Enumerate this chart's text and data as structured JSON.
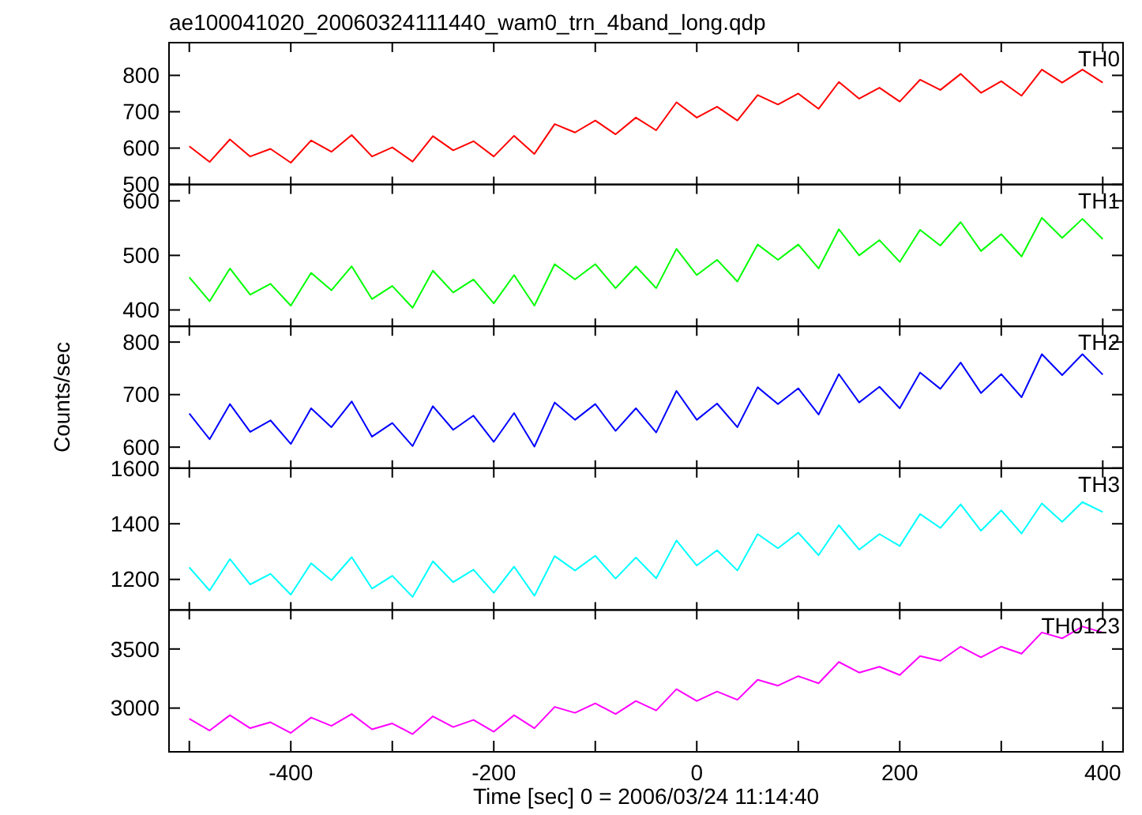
{
  "chart_data": [
    {
      "type": "line",
      "title": "ae100041020_20060324111440_wam0_trn_4band_long.qdp",
      "x": [
        -500,
        -480,
        -460,
        -440,
        -420,
        -400,
        -380,
        -360,
        -340,
        -320,
        -300,
        -280,
        -260,
        -240,
        -220,
        -200,
        -180,
        -160,
        -140,
        -120,
        -100,
        -80,
        -60,
        -40,
        -20,
        0,
        20,
        40,
        60,
        80,
        100,
        120,
        140,
        160,
        180,
        200,
        220,
        240,
        260,
        280,
        300,
        320,
        340,
        360,
        380,
        400
      ],
      "xlim": [
        -520,
        420
      ],
      "xticks": [
        {
          "value": -500,
          "label": null
        },
        {
          "value": -400,
          "label": null
        },
        {
          "value": -300,
          "label": null
        },
        {
          "value": -200,
          "label": null
        },
        {
          "value": -100,
          "label": null
        },
        {
          "value": 0,
          "label": null
        },
        {
          "value": 100,
          "label": null
        },
        {
          "value": 200,
          "label": null
        },
        {
          "value": 300,
          "label": null
        },
        {
          "value": 400,
          "label": null
        }
      ],
      "ylim": [
        500,
        890
      ],
      "yticks": [
        500,
        600,
        700,
        800
      ],
      "tick_labels": "y",
      "legend": "top right",
      "series": [
        {
          "name": "TH0",
          "color": "#ff0000",
          "values": [
            605,
            562,
            624,
            577,
            598,
            560,
            621,
            590,
            636,
            577,
            602,
            563,
            633,
            594,
            619,
            577,
            634,
            584,
            666,
            643,
            676,
            638,
            684,
            649,
            726,
            684,
            714,
            676,
            746,
            720,
            750,
            708,
            782,
            736,
            766,
            728,
            788,
            760,
            804,
            752,
            784,
            744,
            816,
            780,
            816,
            780
          ]
        }
      ]
    },
    {
      "type": "line",
      "x": [
        -500,
        -480,
        -460,
        -440,
        -420,
        -400,
        -380,
        -360,
        -340,
        -320,
        -300,
        -280,
        -260,
        -240,
        -220,
        -200,
        -180,
        -160,
        -140,
        -120,
        -100,
        -80,
        -60,
        -40,
        -20,
        0,
        20,
        40,
        60,
        80,
        100,
        120,
        140,
        160,
        180,
        200,
        220,
        240,
        260,
        280,
        300,
        320,
        340,
        360,
        380,
        400
      ],
      "xlim": [
        -520,
        420
      ],
      "xticks": [
        {
          "value": -500,
          "label": null
        },
        {
          "value": -400,
          "label": null
        },
        {
          "value": -300,
          "label": null
        },
        {
          "value": -200,
          "label": null
        },
        {
          "value": -100,
          "label": null
        },
        {
          "value": 0,
          "label": null
        },
        {
          "value": 100,
          "label": null
        },
        {
          "value": 200,
          "label": null
        },
        {
          "value": 300,
          "label": null
        },
        {
          "value": 400,
          "label": null
        }
      ],
      "ylim": [
        370,
        630
      ],
      "yticks": [
        400,
        500,
        600
      ],
      "tick_labels": "y",
      "legend": "top right",
      "series": [
        {
          "name": "TH1",
          "color": "#00ff00",
          "values": [
            460,
            416,
            476,
            428,
            448,
            408,
            468,
            436,
            480,
            420,
            444,
            404,
            472,
            432,
            456,
            412,
            464,
            408,
            484,
            456,
            484,
            440,
            480,
            440,
            512,
            464,
            492,
            452,
            520,
            492,
            520,
            476,
            548,
            500,
            528,
            488,
            547,
            518,
            561,
            508,
            539,
            498,
            569,
            532,
            567,
            530
          ]
        }
      ]
    },
    {
      "type": "line",
      "ylabel": "Counts/sec",
      "x": [
        -500,
        -480,
        -460,
        -440,
        -420,
        -400,
        -380,
        -360,
        -340,
        -320,
        -300,
        -280,
        -260,
        -240,
        -220,
        -200,
        -180,
        -160,
        -140,
        -120,
        -100,
        -80,
        -60,
        -40,
        -20,
        0,
        20,
        40,
        60,
        80,
        100,
        120,
        140,
        160,
        180,
        200,
        220,
        240,
        260,
        280,
        300,
        320,
        340,
        360,
        380,
        400
      ],
      "xlim": [
        -520,
        420
      ],
      "xticks": [
        {
          "value": -500,
          "label": null
        },
        {
          "value": -400,
          "label": null
        },
        {
          "value": -300,
          "label": null
        },
        {
          "value": -200,
          "label": null
        },
        {
          "value": -100,
          "label": null
        },
        {
          "value": 0,
          "label": null
        },
        {
          "value": 100,
          "label": null
        },
        {
          "value": 200,
          "label": null
        },
        {
          "value": 300,
          "label": null
        },
        {
          "value": 400,
          "label": null
        }
      ],
      "ylim": [
        560,
        830
      ],
      "yticks": [
        600,
        700,
        800
      ],
      "tick_labels": "y",
      "legend": "top right",
      "series": [
        {
          "name": "TH2",
          "color": "#0000ff",
          "values": [
            664,
            615,
            682,
            629,
            651,
            606,
            674,
            638,
            687,
            620,
            646,
            602,
            678,
            633,
            660,
            610,
            665,
            601,
            685,
            652,
            682,
            631,
            674,
            628,
            707,
            652,
            683,
            638,
            714,
            682,
            712,
            662,
            739,
            685,
            715,
            674,
            742,
            711,
            761,
            703,
            739,
            695,
            777,
            737,
            777,
            738
          ]
        }
      ]
    },
    {
      "type": "line",
      "x": [
        -500,
        -480,
        -460,
        -440,
        -420,
        -400,
        -380,
        -360,
        -340,
        -320,
        -300,
        -280,
        -260,
        -240,
        -220,
        -200,
        -180,
        -160,
        -140,
        -120,
        -100,
        -80,
        -60,
        -40,
        -20,
        0,
        20,
        40,
        60,
        80,
        100,
        120,
        140,
        160,
        180,
        200,
        220,
        240,
        260,
        280,
        300,
        320,
        340,
        360,
        380,
        400
      ],
      "xlim": [
        -520,
        420
      ],
      "xticks": [
        {
          "value": -500,
          "label": null
        },
        {
          "value": -400,
          "label": null
        },
        {
          "value": -300,
          "label": null
        },
        {
          "value": -200,
          "label": null
        },
        {
          "value": -100,
          "label": null
        },
        {
          "value": 0,
          "label": null
        },
        {
          "value": 100,
          "label": null
        },
        {
          "value": 200,
          "label": null
        },
        {
          "value": 300,
          "label": null
        },
        {
          "value": 400,
          "label": null
        }
      ],
      "ylim": [
        1090,
        1600
      ],
      "yticks": [
        1200,
        1400,
        1600
      ],
      "tick_labels": "y",
      "legend": "top right",
      "series": [
        {
          "name": "TH3",
          "color": "#00ffff",
          "values": [
            1243,
            1160,
            1273,
            1182,
            1220,
            1145,
            1258,
            1197,
            1280,
            1167,
            1213,
            1137,
            1265,
            1190,
            1235,
            1152,
            1246,
            1141,
            1284,
            1232,
            1285,
            1203,
            1279,
            1204,
            1340,
            1250,
            1305,
            1232,
            1363,
            1312,
            1368,
            1287,
            1395,
            1307,
            1363,
            1320,
            1435,
            1385,
            1470,
            1375,
            1448,
            1365,
            1473,
            1407,
            1478,
            1442
          ]
        }
      ]
    },
    {
      "type": "line",
      "xlabel": "Time [sec] 0 = 2006/03/24 11:14:40",
      "x": [
        -500,
        -480,
        -460,
        -440,
        -420,
        -400,
        -380,
        -360,
        -340,
        -320,
        -300,
        -280,
        -260,
        -240,
        -220,
        -200,
        -180,
        -160,
        -140,
        -120,
        -100,
        -80,
        -60,
        -40,
        -20,
        0,
        20,
        40,
        60,
        80,
        100,
        120,
        140,
        160,
        180,
        200,
        220,
        240,
        260,
        280,
        300,
        320,
        340,
        360,
        380,
        400
      ],
      "xlim": [
        -520,
        420
      ],
      "xticks": [
        {
          "value": -500,
          "label": null
        },
        -400,
        {
          "value": -300,
          "label": null
        },
        -200,
        {
          "value": -100,
          "label": null
        },
        0,
        {
          "value": 100,
          "label": null
        },
        200,
        {
          "value": 300,
          "label": null
        },
        400
      ],
      "ylim": [
        2630,
        3830
      ],
      "yticks": [
        3000,
        3500
      ],
      "legend": "top right",
      "series": [
        {
          "name": "TH0123",
          "color": "#ff00ff",
          "values": [
            2910,
            2810,
            2940,
            2830,
            2880,
            2790,
            2920,
            2850,
            2950,
            2820,
            2870,
            2780,
            2930,
            2840,
            2900,
            2800,
            2940,
            2830,
            3010,
            2960,
            3040,
            2950,
            3060,
            2980,
            3160,
            3060,
            3140,
            3070,
            3240,
            3190,
            3270,
            3210,
            3390,
            3300,
            3350,
            3280,
            3440,
            3400,
            3520,
            3430,
            3520,
            3460,
            3640,
            3590,
            3690,
            3640
          ]
        }
      ]
    }
  ]
}
